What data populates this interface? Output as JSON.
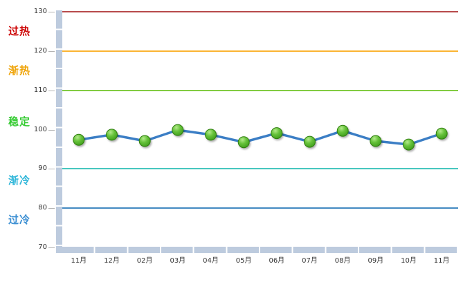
{
  "chart_data": {
    "type": "line",
    "title": "",
    "categories": [
      "11月",
      "12月",
      "02月",
      "03月",
      "04月",
      "05月",
      "06月",
      "07月",
      "08月",
      "09月",
      "10月",
      "11月"
    ],
    "series": [
      {
        "name": "",
        "values": [
          97.4,
          98.7,
          97.1,
          99.9,
          98.7,
          96.8,
          99.1,
          96.9,
          99.7,
          97.1,
          96.2,
          99.0
        ]
      }
    ],
    "ylim": [
      70,
      130
    ],
    "yticks": [
      130,
      120,
      110,
      100,
      90,
      80,
      70
    ],
    "grid": false,
    "legend_position": "none",
    "threshold_lines": [
      {
        "value": 130,
        "color": "#b74a4b"
      },
      {
        "value": 120,
        "color": "#fbb431"
      },
      {
        "value": 110,
        "color": "#82cb42"
      },
      {
        "value": 90,
        "color": "#47c7bf"
      },
      {
        "value": 80,
        "color": "#4289c1"
      }
    ],
    "zones": [
      {
        "label": "过热",
        "color": "#cc0000",
        "label_value": 125
      },
      {
        "label": "渐热",
        "color": "#efa40a",
        "label_value": 115
      },
      {
        "label": "稳定",
        "color": "#35cb32",
        "label_value": 102
      },
      {
        "label": "渐冷",
        "color": "#2fb6d9",
        "label_value": 87
      },
      {
        "label": "过冷",
        "color": "#3a8ed2",
        "label_value": 77
      }
    ],
    "line_color": "#3b7ec5",
    "marker": {
      "fill_light": "#b4ea8c",
      "fill_mid": "#66c23a",
      "fill_dark": "#3c9a1a",
      "border": "#2e7d0e"
    },
    "axis_band_color": "#bdcbde",
    "tick_label_color": "#333333"
  }
}
